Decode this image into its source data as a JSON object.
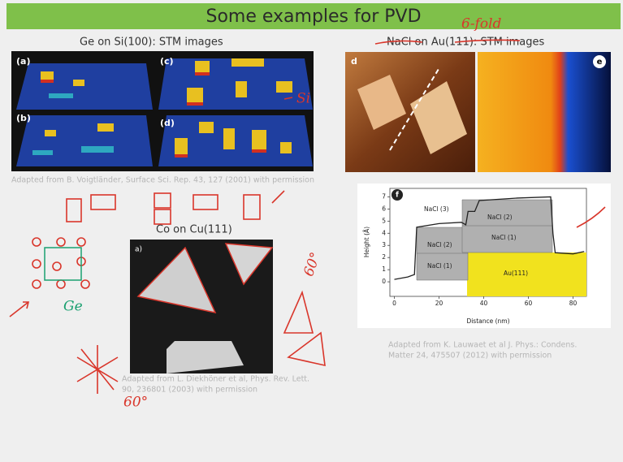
{
  "header": {
    "title": "Some examples for PVD"
  },
  "ge_on_si": {
    "title": "Ge on Si(100): STM images",
    "panels": [
      "(a)",
      "(b)",
      "(c)",
      "(d)"
    ],
    "caption": "Adapted from B. Voigtländer, Surface Sci. Rep. 43, 127 (2001) with permission"
  },
  "nacl_on_au": {
    "title": "NaCl  on Au(111): STM images",
    "panels": [
      "d",
      "e"
    ],
    "profile": {
      "panel": "f",
      "xlabel": "Distance (nm)",
      "ylabel": "Height (Å)",
      "xlim": [
        -2,
        86
      ],
      "ylim": [
        -1.2,
        7.7
      ],
      "xticks": [
        0,
        20,
        40,
        60,
        80
      ],
      "yticks": [
        0,
        1,
        2,
        3,
        4,
        5,
        6,
        7
      ],
      "x": [
        0,
        6,
        9,
        10,
        20,
        30,
        32,
        33,
        36,
        38,
        55,
        70,
        71,
        72,
        80,
        85
      ],
      "y": [
        0.2,
        0.4,
        0.6,
        4.5,
        4.8,
        4.9,
        4.7,
        5.8,
        5.8,
        6.7,
        6.9,
        7.0,
        4.0,
        2.4,
        2.3,
        2.5
      ],
      "region_labels": [
        "NaCl (3)",
        "NaCl (2)",
        "NaCl (2)",
        "NaCl (1)",
        "NaCl (1)",
        "Au(111)"
      ]
    },
    "caption": [
      "Adapted from K. Lauwaet et al J. Phys.: Condens.",
      "Matter 24, 475507 (2012) with permission"
    ]
  },
  "co_on_cu": {
    "title": "Co on Cu(111)",
    "panel": "a)",
    "caption": [
      "Adapted from L. Diekhöner et al, Phys. Rev. Lett.",
      "90, 236801 (2003) with permission"
    ]
  },
  "annotations": [
    "6-fold",
    "Si",
    "Ge",
    "60°",
    "60°"
  ]
}
